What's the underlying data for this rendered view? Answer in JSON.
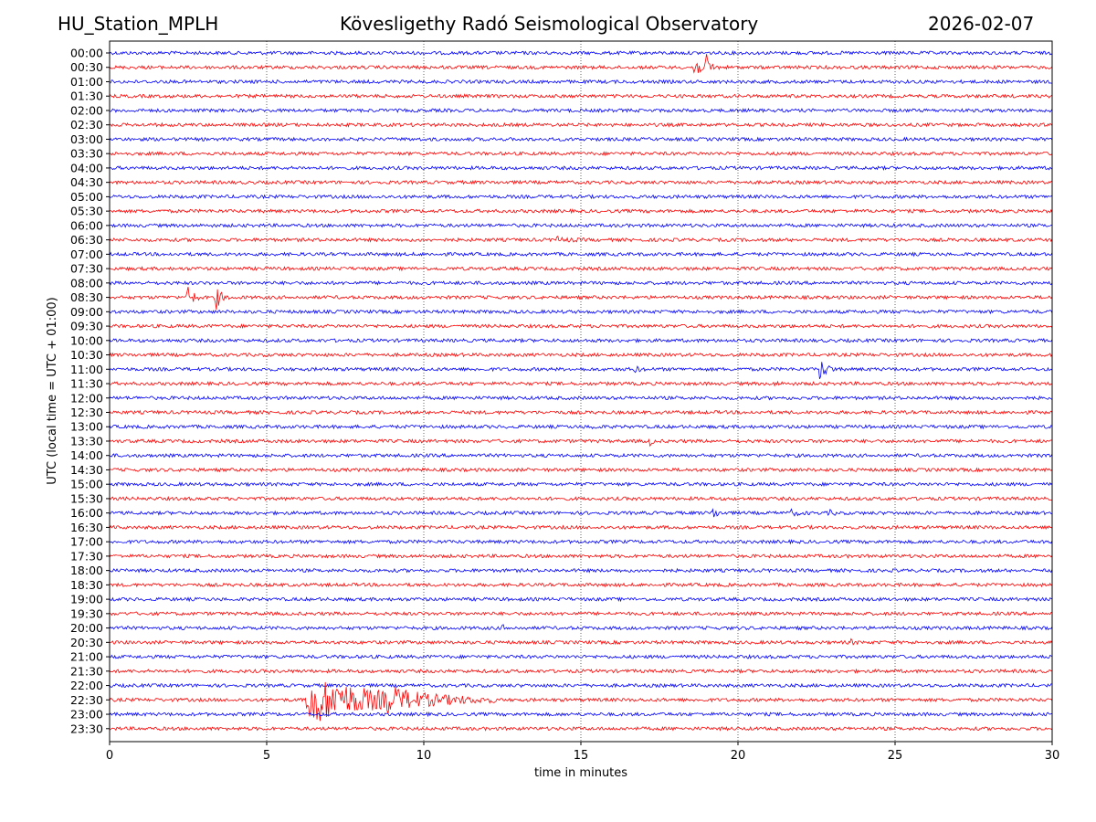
{
  "header": {
    "station": "HU_Station_MPLH",
    "title": "Kövesligethy Radó Seismological Observatory",
    "date": "2026-02-07"
  },
  "chart_data": {
    "type": "line",
    "title": "Kövesligethy Radó Seismological Observatory",
    "xlabel": "time in minutes",
    "ylabel": "UTC (local time = UTC + 01:00)",
    "xlim": [
      0,
      30
    ],
    "x_ticks": [
      "0",
      "5",
      "10",
      "15",
      "20",
      "25",
      "30"
    ],
    "x_tick_values": [
      0,
      5,
      10,
      15,
      20,
      25,
      30
    ],
    "grid": "vertical dotted at x ticks",
    "row_labels": [
      "00:00",
      "00:30",
      "01:00",
      "01:30",
      "02:00",
      "02:30",
      "03:00",
      "03:30",
      "04:00",
      "04:30",
      "05:00",
      "05:30",
      "06:00",
      "06:30",
      "07:00",
      "07:30",
      "08:00",
      "08:30",
      "09:00",
      "09:30",
      "10:00",
      "10:30",
      "11:00",
      "11:30",
      "12:00",
      "12:30",
      "13:00",
      "13:30",
      "14:00",
      "14:30",
      "15:00",
      "15:30",
      "16:00",
      "16:30",
      "17:00",
      "17:30",
      "18:00",
      "18:30",
      "19:00",
      "19:30",
      "20:00",
      "20:30",
      "21:00",
      "21:30",
      "22:00",
      "22:30",
      "23:00",
      "23:30"
    ],
    "colors": [
      "#0000ff",
      "#ff0000"
    ],
    "events": [
      {
        "row": "00:30",
        "minute": 18.6,
        "amplitude": 2.2,
        "duration": 0.5
      },
      {
        "row": "00:30",
        "minute": 19.0,
        "amplitude": 1.8,
        "duration": 0.4
      },
      {
        "row": "06:30",
        "minute": 14.2,
        "amplitude": 0.4,
        "duration": 1.0
      },
      {
        "row": "08:30",
        "minute": 2.5,
        "amplitude": 2.6,
        "duration": 0.4
      },
      {
        "row": "08:30",
        "minute": 3.4,
        "amplitude": 1.9,
        "duration": 0.4
      },
      {
        "row": "11:00",
        "minute": 16.7,
        "amplitude": 0.5,
        "duration": 0.4
      },
      {
        "row": "11:00",
        "minute": 22.6,
        "amplitude": 1.8,
        "duration": 0.6
      },
      {
        "row": "11:30",
        "minute": 21.2,
        "amplitude": 0.6,
        "duration": 0.2
      },
      {
        "row": "13:00",
        "minute": 15.3,
        "amplitude": 0.4,
        "duration": 0.4
      },
      {
        "row": "13:30",
        "minute": 17.2,
        "amplitude": 0.7,
        "duration": 0.2
      },
      {
        "row": "16:00",
        "minute": 19.2,
        "amplitude": 0.9,
        "duration": 0.4
      },
      {
        "row": "16:00",
        "minute": 21.7,
        "amplitude": 0.4,
        "duration": 0.6
      },
      {
        "row": "16:00",
        "minute": 22.9,
        "amplitude": 0.4,
        "duration": 0.4
      },
      {
        "row": "20:00",
        "minute": 12.5,
        "amplitude": 0.4,
        "duration": 0.3
      },
      {
        "row": "20:30",
        "minute": 23.6,
        "amplitude": 0.4,
        "duration": 0.2
      },
      {
        "row": "22:30",
        "minute": 6.3,
        "amplitude": 4.2,
        "duration": 6.0
      },
      {
        "row": "22:30",
        "minute": 8.8,
        "amplitude": 1.2,
        "duration": 2.5
      }
    ]
  }
}
